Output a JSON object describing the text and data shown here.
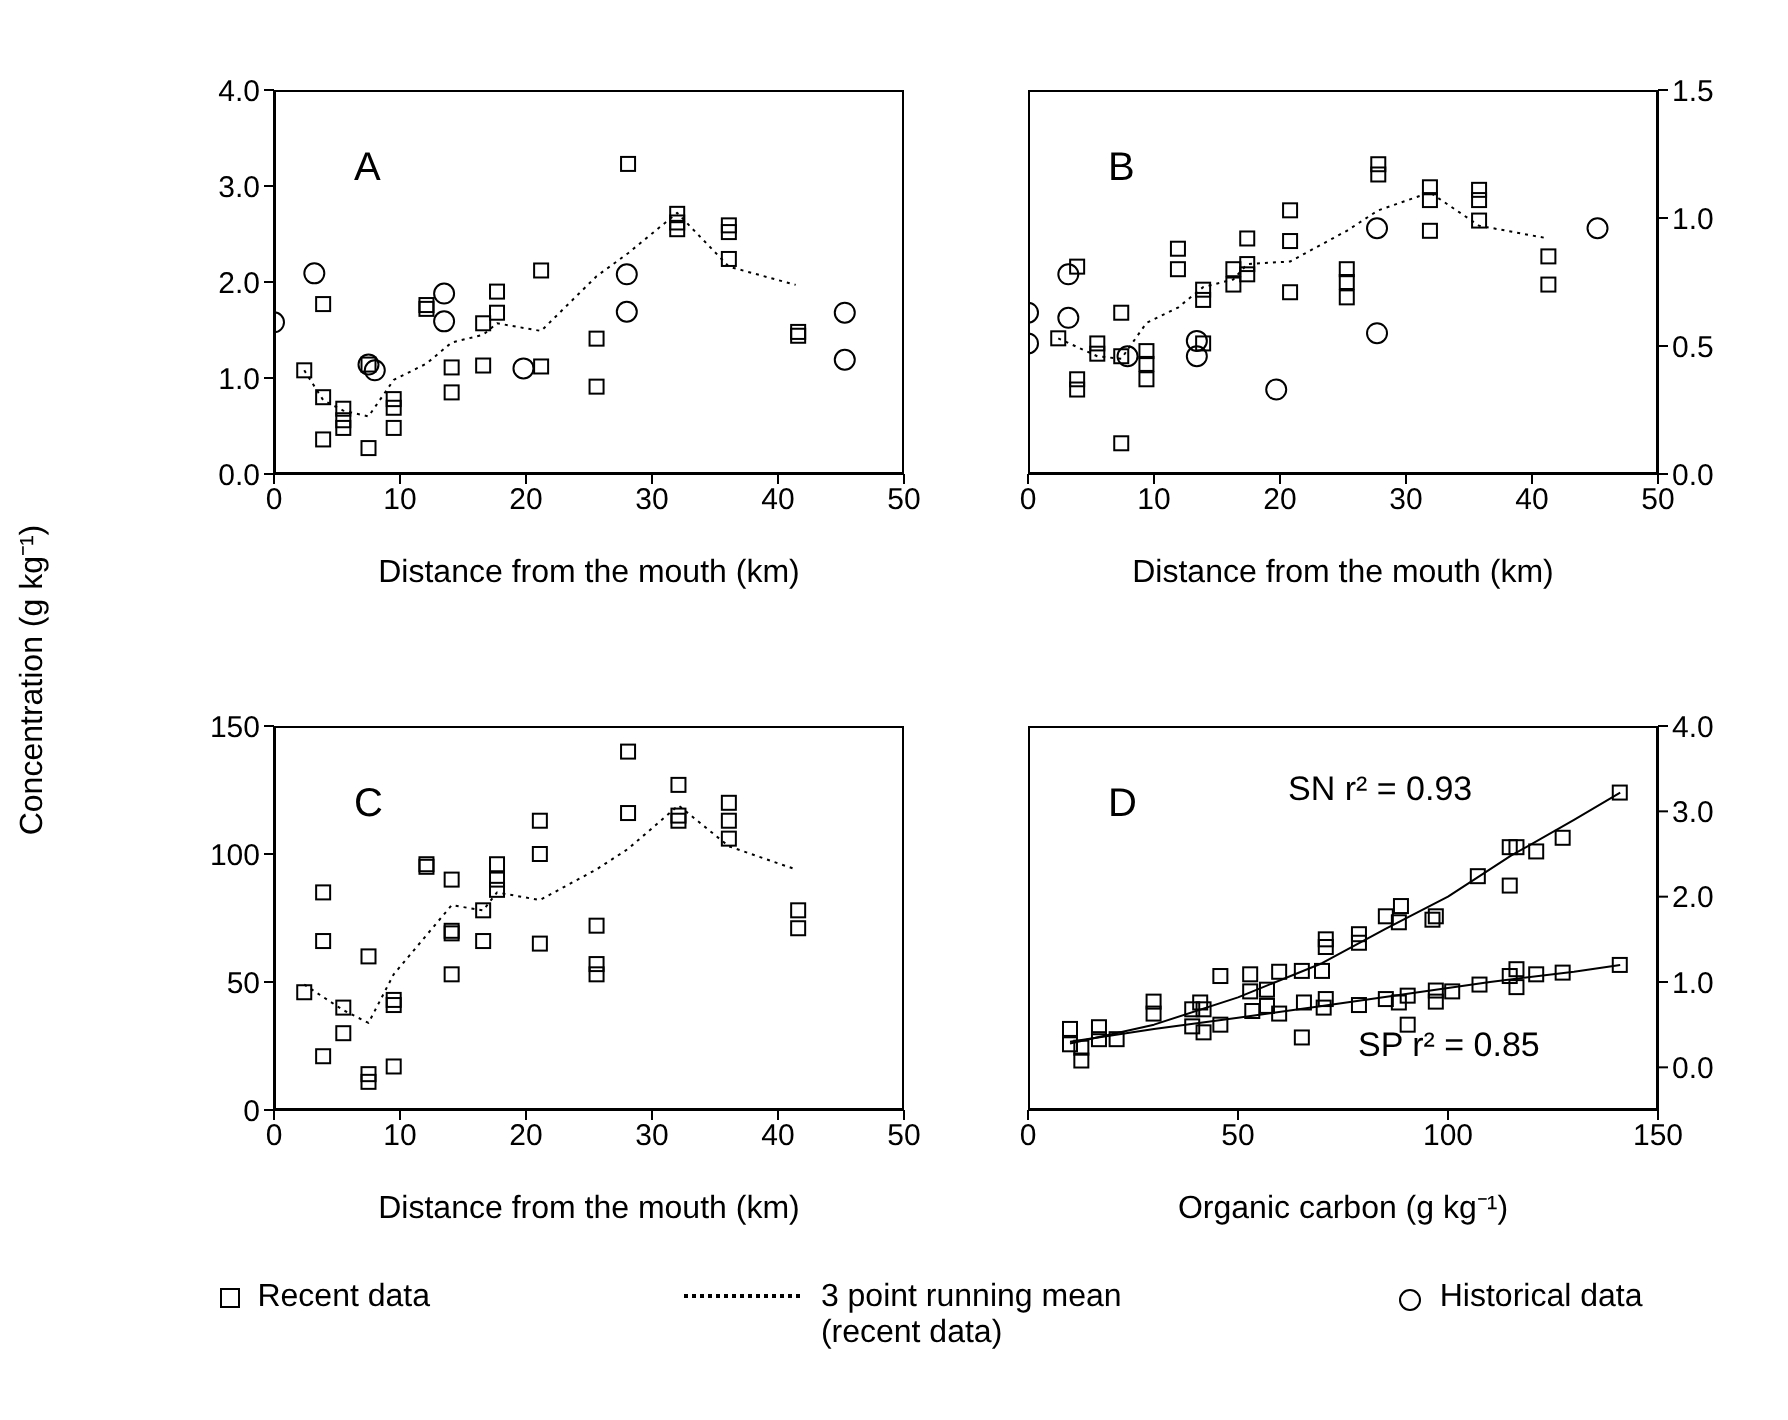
{
  "chart_data": [
    {
      "type": "scatter",
      "xlabel": "Distance from the mouth (km)",
      "ylabel": "Concentration (g kg⁻¹)",
      "annotations": [
        "A"
      ],
      "legend": "bottom",
      "xlim": [
        0,
        50
      ],
      "xticks": [
        0,
        10,
        20,
        30,
        40,
        50
      ],
      "ylim": [
        0,
        4
      ],
      "yticks": [
        {
          "value": 0,
          "label": "0.0"
        },
        {
          "value": 1,
          "label": "1.0"
        },
        {
          "value": 2,
          "label": "2.0"
        },
        {
          "value": 3,
          "label": "3.0"
        },
        {
          "value": 4,
          "label": "4.0"
        }
      ],
      "series": [
        {
          "name": "Recent data",
          "marker": "square",
          "color": "#000000",
          "x": [
            2.4,
            3.9,
            3.9,
            3.9,
            5.5,
            5.5,
            5.5,
            7.5,
            7.5,
            9.5,
            9.5,
            9.5,
            12.1,
            12.1,
            14.1,
            14.1,
            16.6,
            16.6,
            17.7,
            17.7,
            21.2,
            21.2,
            25.6,
            25.6,
            28.1,
            32.0,
            32.0,
            32.0,
            36.1,
            36.1,
            36.1,
            41.6,
            41.6
          ],
          "values": [
            1.08,
            1.77,
            0.8,
            0.36,
            0.68,
            0.56,
            0.48,
            0.27,
            1.14,
            0.78,
            0.69,
            0.48,
            1.76,
            1.72,
            1.11,
            0.85,
            1.57,
            1.13,
            1.9,
            1.68,
            2.12,
            1.12,
            1.41,
            0.91,
            3.23,
            2.71,
            2.62,
            2.55,
            2.59,
            2.52,
            2.24,
            1.48,
            1.44
          ]
        },
        {
          "type": "line",
          "name": "3 point running mean (recent data)",
          "marker": "none",
          "line_style": "dotted",
          "color": "#000000",
          "x": [
            2.4,
            3.9,
            5.5,
            7.5,
            9.5,
            12.1,
            14.1,
            16.6,
            17.7,
            21.2,
            25.6,
            28.1,
            32.0,
            36.1,
            41.4
          ],
          "values": [
            1.08,
            0.77,
            0.66,
            0.6,
            0.98,
            1.15,
            1.37,
            1.45,
            1.57,
            1.49,
            2.06,
            2.3,
            2.72,
            2.16,
            1.97
          ]
        },
        {
          "name": "Historical data",
          "marker": "circle",
          "color": "#000000",
          "x": [
            0,
            3.2,
            7.5,
            8.0,
            13.5,
            13.5,
            19.8,
            28.0,
            28.0,
            45.3,
            45.3
          ],
          "values": [
            1.58,
            2.09,
            1.14,
            1.08,
            1.88,
            1.59,
            1.1,
            2.08,
            1.69,
            1.68,
            1.19
          ]
        }
      ]
    },
    {
      "type": "scatter",
      "xlabel": "Distance from the mouth (km)",
      "annotations": [
        "B"
      ],
      "xlim": [
        0,
        50
      ],
      "xticks": [
        0,
        10,
        20,
        30,
        40,
        50
      ],
      "y2lim": [
        0,
        1.5
      ],
      "y2ticks": [
        {
          "value": 0,
          "label": "0.0"
        },
        {
          "value": 0.5,
          "label": "0.5"
        },
        {
          "value": 1,
          "label": "1.0"
        },
        {
          "value": 1.5,
          "label": "1.5"
        }
      ],
      "series": [
        {
          "marker": "square",
          "axis": "y2",
          "color": "#000000",
          "x": [
            2.4,
            3.9,
            3.9,
            3.9,
            5.5,
            5.5,
            7.4,
            7.4,
            7.4,
            9.4,
            9.4,
            9.4,
            11.9,
            11.9,
            13.9,
            13.9,
            13.9,
            16.3,
            16.3,
            17.4,
            17.4,
            17.4,
            20.8,
            20.8,
            20.8,
            25.3,
            25.3,
            25.3,
            27.8,
            27.8,
            31.9,
            31.9,
            31.9,
            35.8,
            35.8,
            35.8,
            41.3,
            41.3
          ],
          "values": [
            0.53,
            0.81,
            0.37,
            0.33,
            0.51,
            0.47,
            0.63,
            0.46,
            0.12,
            0.48,
            0.43,
            0.37,
            0.88,
            0.8,
            0.72,
            0.68,
            0.51,
            0.8,
            0.74,
            0.92,
            0.82,
            0.78,
            1.03,
            0.91,
            0.71,
            0.8,
            0.75,
            0.69,
            1.21,
            1.17,
            1.12,
            1.07,
            0.95,
            1.11,
            1.07,
            0.99,
            0.85,
            0.74
          ]
        },
        {
          "type": "line",
          "marker": "none",
          "line_style": "dotted",
          "axis": "y2",
          "color": "#000000",
          "x": [
            2.4,
            5.5,
            7.4,
            9.4,
            11.9,
            13.9,
            16.3,
            17.4,
            20.8,
            25.3,
            27.8,
            31.9,
            35.8,
            41.3
          ],
          "values": [
            0.53,
            0.46,
            0.45,
            0.59,
            0.65,
            0.73,
            0.76,
            0.82,
            0.83,
            0.95,
            1.03,
            1.1,
            0.97,
            0.92
          ]
        },
        {
          "marker": "circle",
          "axis": "y2",
          "color": "#000000",
          "x": [
            0,
            0,
            3.2,
            3.2,
            7.9,
            13.4,
            13.4,
            19.7,
            27.7,
            27.7,
            45.2
          ],
          "values": [
            0.63,
            0.51,
            0.78,
            0.61,
            0.46,
            0.52,
            0.46,
            0.33,
            0.96,
            0.55,
            0.96
          ]
        }
      ]
    },
    {
      "type": "scatter",
      "xlabel": "Distance from the mouth (km)",
      "annotations": [
        "C"
      ],
      "xlim": [
        0,
        50
      ],
      "xticks": [
        0,
        10,
        20,
        30,
        40,
        50
      ],
      "ylim": [
        0,
        150
      ],
      "yticks": [
        0,
        50,
        100,
        150
      ],
      "series": [
        {
          "marker": "square",
          "color": "#000000",
          "x": [
            2.4,
            3.9,
            3.9,
            3.9,
            5.5,
            5.5,
            7.5,
            7.5,
            7.5,
            9.5,
            9.5,
            9.5,
            12.1,
            12.1,
            14.1,
            14.1,
            14.1,
            14.1,
            16.6,
            16.6,
            17.7,
            17.7,
            17.7,
            21.1,
            21.1,
            21.1,
            25.6,
            25.6,
            25.6,
            28.1,
            28.1,
            32.1,
            32.1,
            32.1,
            36.1,
            36.1,
            36.1,
            41.6,
            41.6
          ],
          "values": [
            46,
            85,
            66,
            21,
            40,
            30,
            60,
            14,
            11,
            43,
            41,
            17,
            96,
            95,
            90,
            70,
            69,
            53,
            78,
            66,
            96,
            90,
            86,
            113,
            100,
            65,
            72,
            57,
            53,
            140,
            116,
            127,
            115,
            113,
            120,
            113,
            106,
            78,
            71
          ]
        },
        {
          "type": "line",
          "marker": "none",
          "line_style": "dotted",
          "color": "#000000",
          "x": [
            2.4,
            5.5,
            7.5,
            9.5,
            14.1,
            16.6,
            17.7,
            21.1,
            25.6,
            28.1,
            32.1,
            36.1,
            41.4
          ],
          "values": [
            49,
            39,
            34,
            53,
            80,
            78,
            85,
            82,
            94,
            102,
            119,
            103,
            94
          ]
        }
      ]
    },
    {
      "type": "scatter",
      "xlabel": "Organic carbon (g kg⁻¹)",
      "annotations": [
        "D",
        "SN r² = 0.93",
        "SP r² = 0.85"
      ],
      "xlim": [
        0,
        150
      ],
      "xticks": [
        0,
        50,
        100,
        150
      ],
      "y2lim": [
        -0.5,
        4
      ],
      "y2ticks": [
        {
          "value": 0,
          "label": "0.0"
        },
        {
          "value": 1,
          "label": "1.0"
        },
        {
          "value": 2,
          "label": "2.0"
        },
        {
          "value": 3,
          "label": "3.0"
        },
        {
          "value": 4,
          "label": "4.0"
        }
      ],
      "series": [
        {
          "marker": "square",
          "axis": "y2",
          "color": "#000000",
          "x": [
            10,
            12.7,
            16.9,
            29.9,
            41.0,
            45.8,
            52.9,
            56.9,
            59.8,
            65.2,
            70.0,
            70.9,
            70.9,
            78.8,
            78.8,
            85.2,
            88.8,
            88.3,
            96.3,
            97.1,
            107.1,
            114.7,
            116.3,
            114.7,
            121,
            127.3,
            140.9
          ],
          "values": [
            0.45,
            0.23,
            0.47,
            0.77,
            0.76,
            1.07,
            1.09,
            0.91,
            1.12,
            1.13,
            1.13,
            1.5,
            1.41,
            1.56,
            1.46,
            1.77,
            1.89,
            1.7,
            1.73,
            1.77,
            2.24,
            2.58,
            2.58,
            2.13,
            2.53,
            2.69,
            3.22
          ]
        },
        {
          "marker": "square",
          "axis": "y2",
          "color": "#000000",
          "x": [
            10,
            12.7,
            16.9,
            21.1,
            29.9,
            39.1,
            39.1,
            41.8,
            41.8,
            45.8,
            52.9,
            53.4,
            56.9,
            59.8,
            65.2,
            65.7,
            70.9,
            70.4,
            78.8,
            85.2,
            88.3,
            90.4,
            90.4,
            97.1,
            97.1,
            101,
            107.5,
            114.7,
            116.3,
            116.3,
            121,
            127.3,
            140.9
          ],
          "values": [
            0.27,
            0.08,
            0.33,
            0.33,
            0.63,
            0.68,
            0.48,
            0.68,
            0.41,
            0.5,
            0.89,
            0.66,
            0.72,
            0.63,
            0.35,
            0.76,
            0.8,
            0.7,
            0.73,
            0.8,
            0.76,
            0.5,
            0.84,
            0.9,
            0.77,
            0.89,
            0.97,
            1.07,
            1.15,
            0.94,
            1.09,
            1.11,
            1.2
          ]
        },
        {
          "type": "line",
          "marker": "none",
          "line_style": "solid",
          "axis": "y2",
          "color": "#000000",
          "x": [
            10,
            30,
            50,
            70,
            85,
            100,
            115,
            130,
            141
          ],
          "values": [
            0.28,
            0.5,
            0.82,
            1.22,
            1.62,
            2.0,
            2.48,
            2.9,
            3.22
          ]
        },
        {
          "type": "line",
          "marker": "none",
          "line_style": "solid",
          "axis": "y2",
          "color": "#000000",
          "x": [
            10,
            30,
            50,
            70,
            90,
            110,
            130,
            141
          ],
          "values": [
            0.3,
            0.45,
            0.58,
            0.72,
            0.86,
            1.0,
            1.12,
            1.2
          ]
        }
      ]
    }
  ]
}
